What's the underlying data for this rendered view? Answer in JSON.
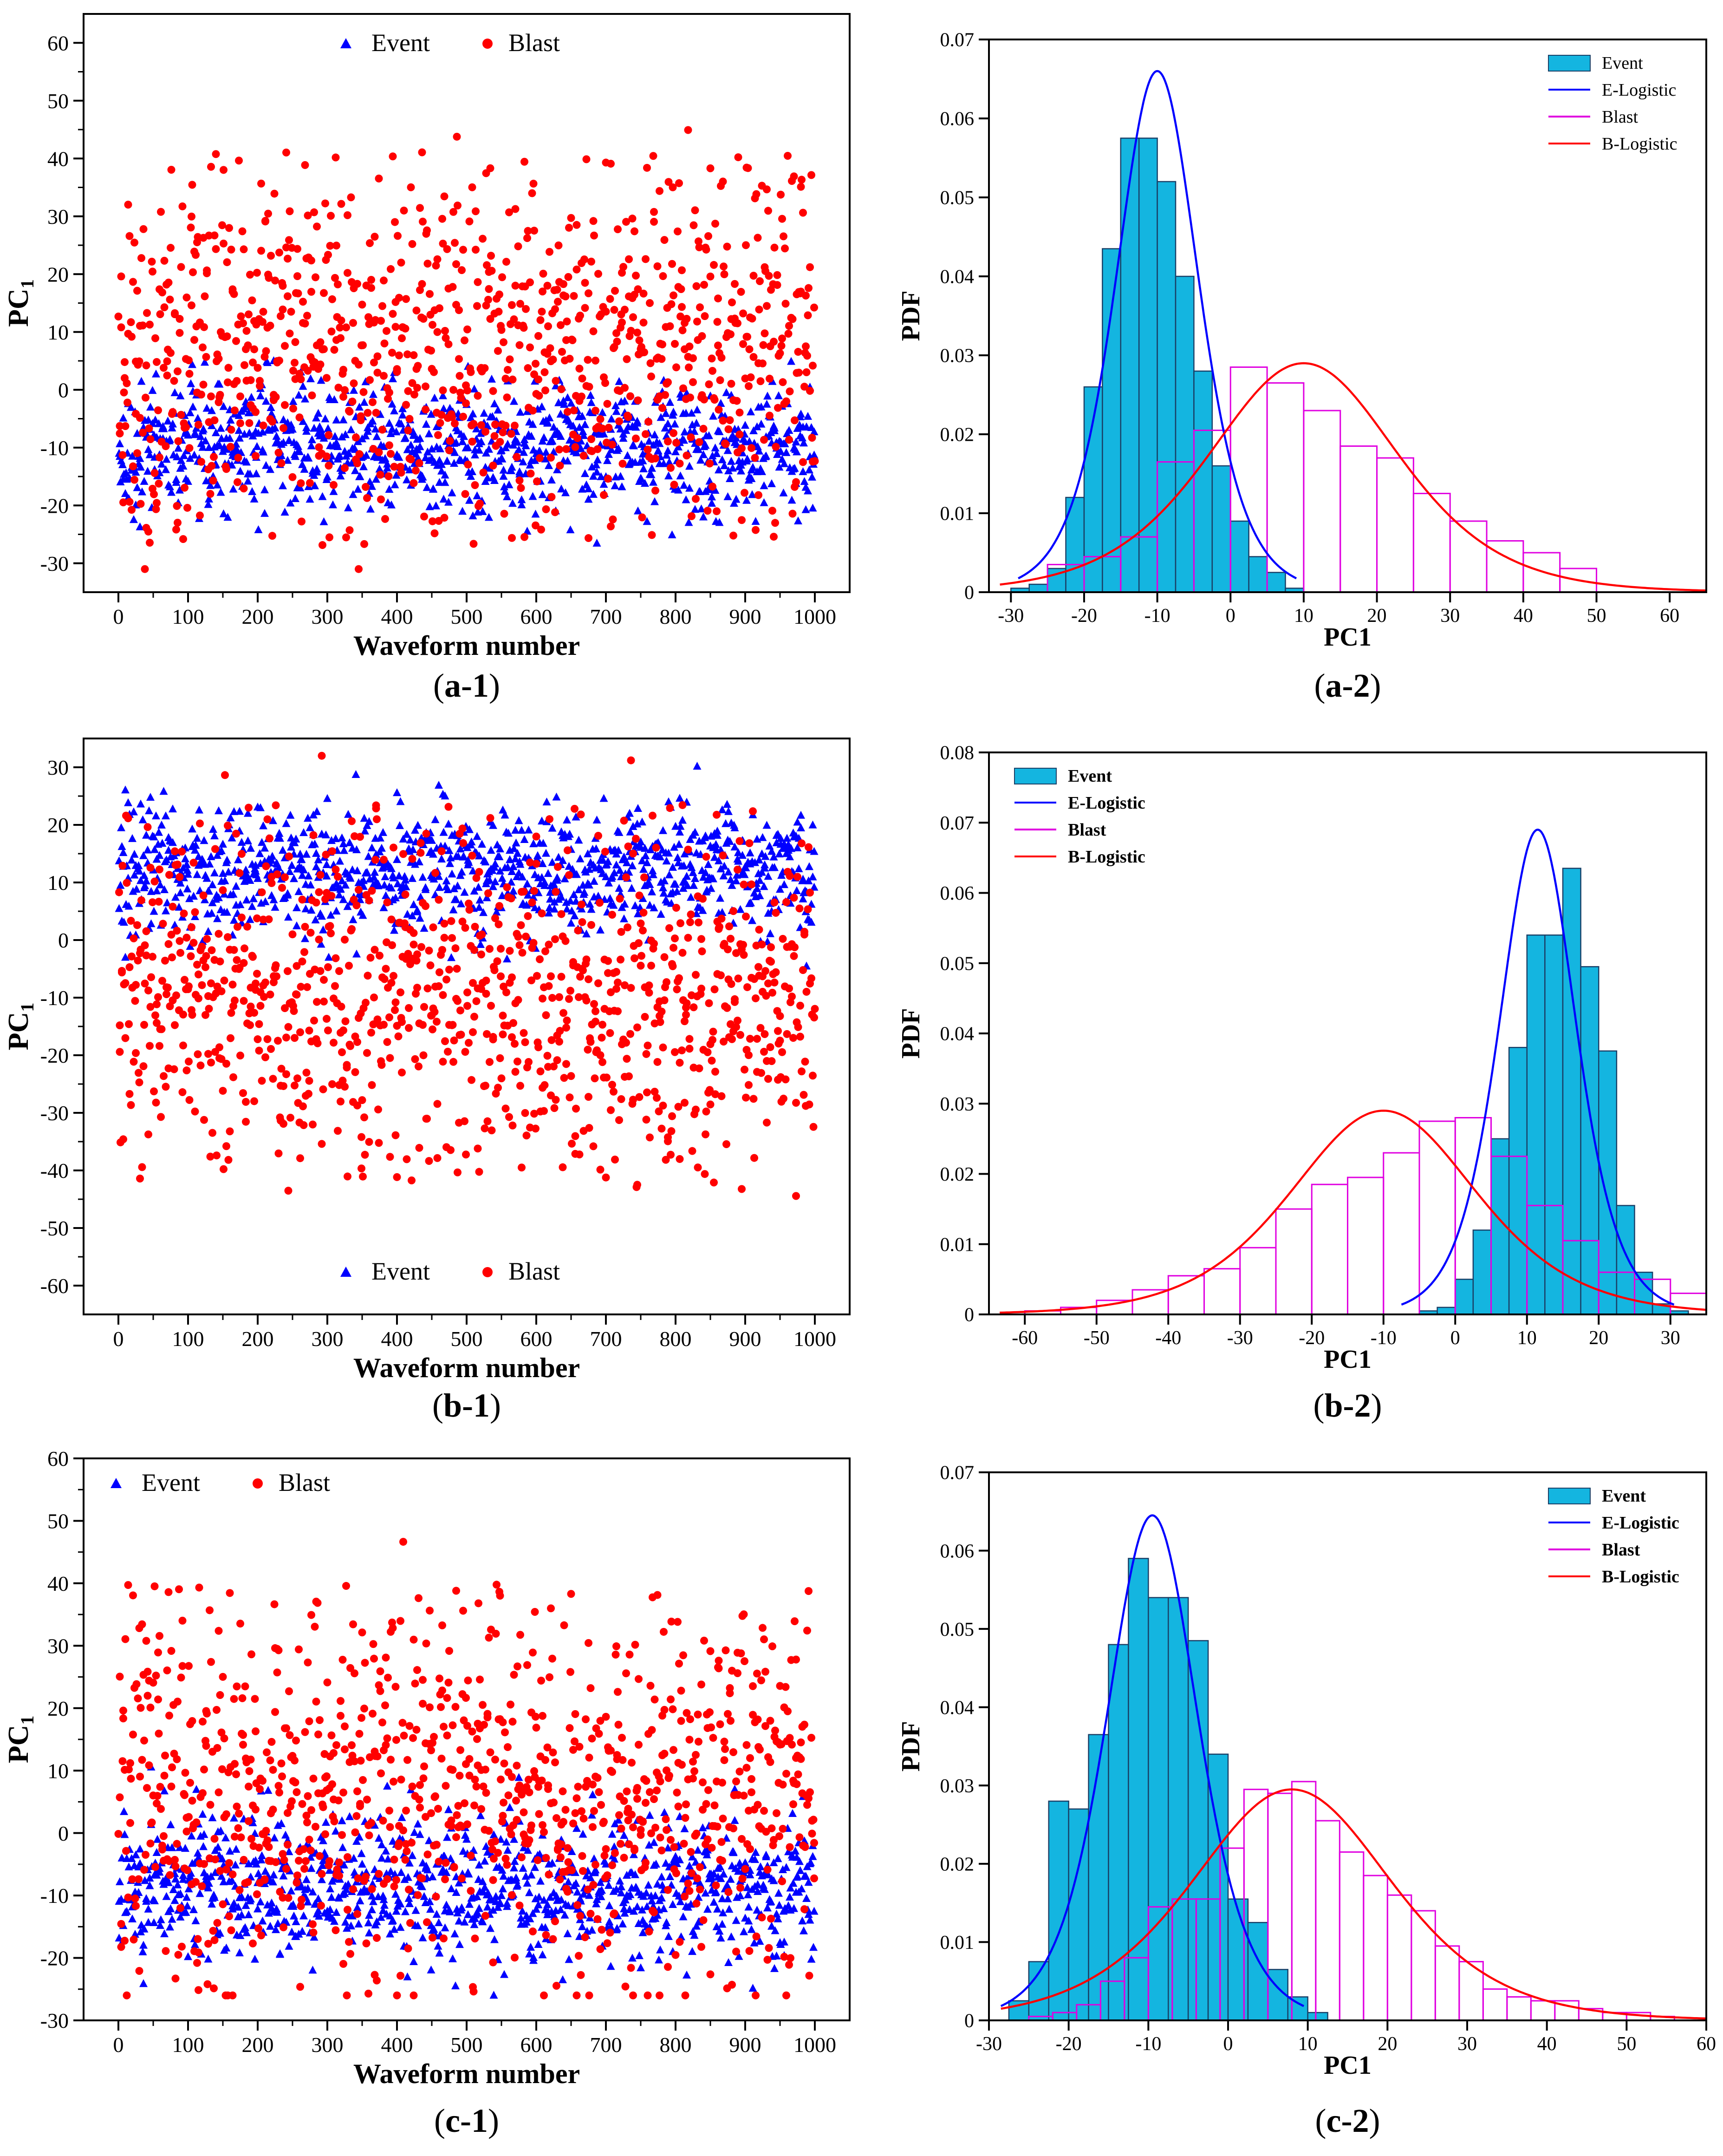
{
  "chart_data": [
    {
      "id": "a1",
      "type": "scatter",
      "panel_label": "(a-1)",
      "xlabel": "Waveform number",
      "ylabel": "PC",
      "ylabel_sub": "1",
      "xlim": [
        -50,
        1050
      ],
      "ylim": [
        -35,
        65
      ],
      "xticks": [
        0,
        100,
        200,
        300,
        400,
        500,
        600,
        700,
        800,
        900,
        1000
      ],
      "yticks": [
        -30,
        -20,
        -10,
        0,
        10,
        20,
        30,
        40,
        50,
        60
      ],
      "legend": {
        "position": "top-center",
        "entries": [
          "Event",
          "Blast"
        ]
      },
      "series": [
        {
          "name": "Event",
          "marker": "triangle",
          "color": "#0000ff",
          "n": 1000,
          "center": -10,
          "spread": 5.5
        },
        {
          "name": "Blast",
          "marker": "circle",
          "color": "#ff0000",
          "n": 1000,
          "center": 7,
          "spread": 13
        }
      ]
    },
    {
      "id": "a2",
      "type": "bar",
      "panel_label": "(a-2)",
      "xlabel": "PC1",
      "ylabel": "PDF",
      "xlim": [
        -33,
        65
      ],
      "ylim": [
        0,
        0.07
      ],
      "xticks": [
        -30,
        -20,
        -10,
        0,
        10,
        20,
        30,
        40,
        50,
        60
      ],
      "yticks": [
        0,
        0.01,
        0.02,
        0.03,
        0.04,
        0.05,
        0.06,
        0.07
      ],
      "legend": {
        "position": "top-right",
        "entries": [
          "Event",
          "E-Logistic",
          "Blast",
          "B-Logistic"
        ]
      },
      "series": [
        {
          "name": "Event",
          "kind": "hist",
          "bin_start": -30,
          "bin_width": 2.5,
          "values": [
            0.0005,
            0.001,
            0.003,
            0.012,
            0.026,
            0.0435,
            0.0575,
            0.0575,
            0.052,
            0.04,
            0.028,
            0.016,
            0.009,
            0.0045,
            0.0025,
            0.0005
          ]
        },
        {
          "name": "Blast",
          "kind": "hist",
          "bin_start": -25,
          "bin_width": 5,
          "values": [
            0.0035,
            0.0045,
            0.007,
            0.0165,
            0.0205,
            0.0285,
            0.0265,
            0.023,
            0.0185,
            0.017,
            0.0125,
            0.009,
            0.0065,
            0.005,
            0.003
          ]
        },
        {
          "name": "E-Logistic",
          "kind": "curve",
          "mu": -10,
          "s": 3.8,
          "peak": 0.066
        },
        {
          "name": "B-Logistic",
          "kind": "curve",
          "mu": 10,
          "s": 8.7,
          "peak": 0.029
        }
      ]
    },
    {
      "id": "b1",
      "type": "scatter",
      "panel_label": "(b-1)",
      "xlabel": "Waveform number",
      "ylabel": "PC",
      "ylabel_sub": "1",
      "xlim": [
        -50,
        1050
      ],
      "ylim": [
        -65,
        35
      ],
      "xticks": [
        0,
        100,
        200,
        300,
        400,
        500,
        600,
        700,
        800,
        900,
        1000
      ],
      "yticks": [
        -60,
        -50,
        -40,
        -30,
        -20,
        -10,
        0,
        10,
        20,
        30
      ],
      "legend": {
        "position": "bottom-center",
        "entries": [
          "Event",
          "Blast"
        ]
      },
      "series": [
        {
          "name": "Event",
          "marker": "triangle",
          "color": "#0000ff",
          "n": 1000,
          "center": 12,
          "spread": 5.5
        },
        {
          "name": "Blast",
          "marker": "circle",
          "color": "#ff0000",
          "n": 1000,
          "center": -10,
          "spread": 13
        }
      ]
    },
    {
      "id": "b2",
      "type": "bar",
      "panel_label": "(b-2)",
      "xlabel": "PC1",
      "ylabel": "PDF",
      "xlim": [
        -65,
        35
      ],
      "ylim": [
        0,
        0.08
      ],
      "xticks": [
        -60,
        -50,
        -40,
        -30,
        -20,
        -10,
        0,
        10,
        20,
        30
      ],
      "yticks": [
        0,
        0.01,
        0.02,
        0.03,
        0.04,
        0.05,
        0.06,
        0.07,
        0.08
      ],
      "legend": {
        "position": "top-left",
        "entries": [
          "Event",
          "E-Logistic",
          "Blast",
          "B-Logistic"
        ]
      },
      "series": [
        {
          "name": "Event",
          "kind": "hist",
          "bin_start": -5,
          "bin_width": 2.5,
          "values": [
            0.0005,
            0.001,
            0.005,
            0.012,
            0.025,
            0.038,
            0.054,
            0.054,
            0.0635,
            0.0495,
            0.0375,
            0.0155,
            0.006,
            0.0015,
            0.0005
          ]
        },
        {
          "name": "Blast",
          "kind": "hist",
          "bin_start": -60,
          "bin_width": 5,
          "values": [
            0.0005,
            0.001,
            0.002,
            0.0035,
            0.0055,
            0.0065,
            0.0095,
            0.015,
            0.0185,
            0.0195,
            0.023,
            0.0275,
            0.028,
            0.0225,
            0.0155,
            0.0105,
            0.006,
            0.005,
            0.003
          ]
        },
        {
          "name": "E-Logistic",
          "kind": "curve",
          "mu": 11.5,
          "s": 3.6,
          "peak": 0.069
        },
        {
          "name": "B-Logistic",
          "kind": "curve",
          "mu": -10,
          "s": 8.7,
          "peak": 0.029
        }
      ]
    },
    {
      "id": "c1",
      "type": "scatter",
      "panel_label": "(c-1)",
      "xlabel": "Waveform number",
      "ylabel": "PC",
      "ylabel_sub": "1",
      "xlim": [
        -50,
        1050
      ],
      "ylim": [
        -30,
        60
      ],
      "xticks": [
        0,
        100,
        200,
        300,
        400,
        500,
        600,
        700,
        800,
        900,
        1000
      ],
      "yticks": [
        -30,
        -20,
        -10,
        0,
        10,
        20,
        30,
        40,
        50,
        60
      ],
      "legend": {
        "position": "top-left",
        "entries": [
          "Event",
          "Blast"
        ]
      },
      "series": [
        {
          "name": "Event",
          "marker": "triangle",
          "color": "#0000ff",
          "n": 1000,
          "center": -9,
          "spread": 5.5
        },
        {
          "name": "Blast",
          "marker": "circle",
          "color": "#ff0000",
          "n": 1000,
          "center": 6,
          "spread": 13
        }
      ]
    },
    {
      "id": "c2",
      "type": "bar",
      "panel_label": "(c-2)",
      "xlabel": "PC1",
      "ylabel": "PDF",
      "xlim": [
        -30,
        60
      ],
      "ylim": [
        0,
        0.07
      ],
      "xticks": [
        -30,
        -20,
        -10,
        0,
        10,
        20,
        30,
        40,
        50,
        60
      ],
      "yticks": [
        0,
        0.01,
        0.02,
        0.03,
        0.04,
        0.05,
        0.06,
        0.07
      ],
      "legend": {
        "position": "top-right",
        "entries": [
          "Event",
          "E-Logistic",
          "Blast",
          "B-Logistic"
        ]
      },
      "series": [
        {
          "name": "Event",
          "kind": "hist",
          "bin_start": -27.5,
          "bin_width": 2.5,
          "values": [
            0.0025,
            0.0075,
            0.028,
            0.027,
            0.0365,
            0.048,
            0.059,
            0.054,
            0.054,
            0.0485,
            0.034,
            0.0155,
            0.0125,
            0.0065,
            0.003,
            0.001
          ]
        },
        {
          "name": "Blast",
          "kind": "hist",
          "bin_start": -25,
          "bin_width": 3,
          "values": [
            0.0005,
            0.001,
            0.002,
            0.005,
            0.008,
            0.0145,
            0.0155,
            0.0155,
            0.022,
            0.0295,
            0.029,
            0.0305,
            0.0255,
            0.0215,
            0.0185,
            0.016,
            0.014,
            0.0095,
            0.0075,
            0.004,
            0.003,
            0.0025,
            0.0025,
            0.0015,
            0.001,
            0.001,
            0.0005
          ]
        },
        {
          "name": "E-Logistic",
          "kind": "curve",
          "mu": -9.5,
          "s": 3.85,
          "peak": 0.0645
        },
        {
          "name": "B-Logistic",
          "kind": "curve",
          "mu": 8,
          "s": 8.4,
          "peak": 0.0295
        }
      ]
    }
  ]
}
